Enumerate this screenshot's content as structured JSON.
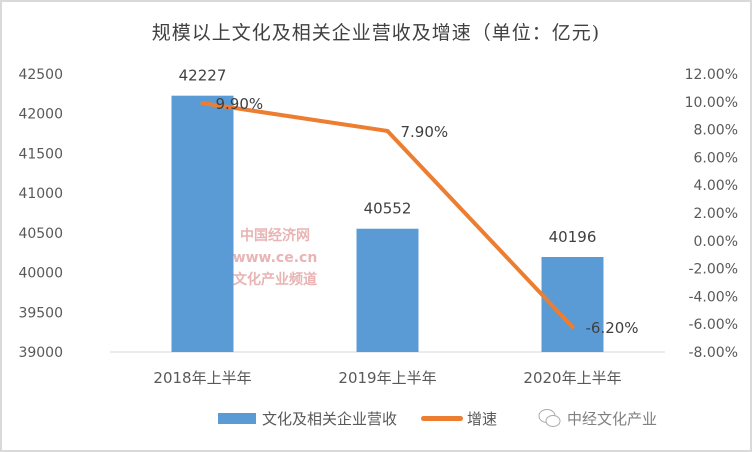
{
  "chart_data": {
    "type": "bar+line",
    "title": "规模以上文化及相关企业营收及增速（单位：亿元)",
    "categories": [
      "2018年上半年",
      "2019年上半年",
      "2020年上半年"
    ],
    "series": [
      {
        "name": "文化及相关企业营收",
        "type": "bar",
        "axis": "left",
        "values": [
          42227,
          40552,
          40196
        ],
        "labels": [
          "42227",
          "40552",
          "40196"
        ],
        "color": "#5b9bd5"
      },
      {
        "name": "增速",
        "type": "line",
        "axis": "right",
        "values": [
          9.9,
          7.9,
          -6.2
        ],
        "labels": [
          "9.90%",
          "7.90%",
          "-6.20%"
        ],
        "color": "#ed7d31"
      }
    ],
    "left_axis": {
      "ylim": [
        39000,
        42500
      ],
      "ticks": [
        "39000",
        "39500",
        "40000",
        "40500",
        "41000",
        "41500",
        "42000",
        "42500"
      ]
    },
    "right_axis": {
      "ylim": [
        -8,
        12
      ],
      "ticks": [
        "-8.00%",
        "-6.00%",
        "-4.00%",
        "-2.00%",
        "0.00%",
        "2.00%",
        "4.00%",
        "6.00%",
        "8.00%",
        "10.00%",
        "12.00%"
      ]
    },
    "grid": false,
    "legend": "bottom"
  },
  "watermark": {
    "text": "中经文化产业",
    "chart_watermark": "中国经济网 www.ce.cn 文化产业频道"
  }
}
